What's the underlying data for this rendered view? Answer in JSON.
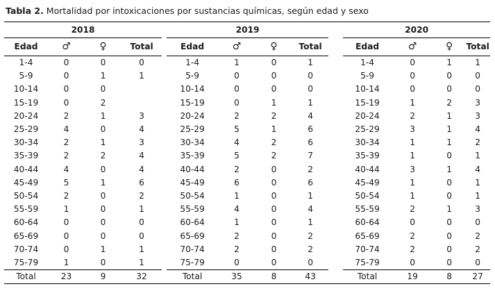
{
  "caption": {
    "label": "Tabla 2.",
    "text": " Mortalidad por intoxicaciones por sustancias químicas, según edad y sexo"
  },
  "years": [
    "2018",
    "2019",
    "2020"
  ],
  "headers": {
    "age": "Edad",
    "male": "♂",
    "female": "♀",
    "total": "Total"
  },
  "rows": [
    {
      "age": "1-4",
      "y2018": [
        "0",
        "0",
        "0"
      ],
      "y2019": [
        "1",
        "0",
        "1"
      ],
      "y2020": [
        "0",
        "1",
        "1"
      ]
    },
    {
      "age": "5-9",
      "y2018": [
        "0",
        "1",
        "1"
      ],
      "y2019": [
        "0",
        "0",
        "0"
      ],
      "y2020": [
        "0",
        "0",
        "0"
      ]
    },
    {
      "age": "10-14",
      "y2018": [
        "0",
        "0",
        ""
      ],
      "y2019": [
        "0",
        "0",
        "0"
      ],
      "y2020": [
        "0",
        "0",
        "0"
      ]
    },
    {
      "age": "15-19",
      "y2018": [
        "0",
        "2",
        ""
      ],
      "y2019": [
        "0",
        "1",
        "1"
      ],
      "y2020": [
        "1",
        "2",
        "3"
      ]
    },
    {
      "age": "20-24",
      "y2018": [
        "2",
        "1",
        "3"
      ],
      "y2019": [
        "2",
        "2",
        "4"
      ],
      "y2020": [
        "2",
        "1",
        "3"
      ]
    },
    {
      "age": "25-29",
      "y2018": [
        "4",
        "0",
        "4"
      ],
      "y2019": [
        "5",
        "1",
        "6"
      ],
      "y2020": [
        "3",
        "1",
        "4"
      ]
    },
    {
      "age": "30-34",
      "y2018": [
        "2",
        "1",
        "3"
      ],
      "y2019": [
        "4",
        "2",
        "6"
      ],
      "y2020": [
        "1",
        "1",
        "2"
      ]
    },
    {
      "age": "35-39",
      "y2018": [
        "2",
        "2",
        "4"
      ],
      "y2019": [
        "5",
        "2",
        "7"
      ],
      "y2020": [
        "1",
        "0",
        "1"
      ]
    },
    {
      "age": "40-44",
      "y2018": [
        "4",
        "0",
        "4"
      ],
      "y2019": [
        "2",
        "0",
        "2"
      ],
      "y2020": [
        "3",
        "1",
        "4"
      ]
    },
    {
      "age": "45-49",
      "y2018": [
        "5",
        "1",
        "6"
      ],
      "y2019": [
        "6",
        "0",
        "6"
      ],
      "y2020": [
        "1",
        "0",
        "1"
      ]
    },
    {
      "age": "50-54",
      "y2018": [
        "2",
        "0",
        "2"
      ],
      "y2019": [
        "1",
        "0",
        "1"
      ],
      "y2020": [
        "1",
        "0",
        "1"
      ]
    },
    {
      "age": "55-59",
      "y2018": [
        "1",
        "0",
        "1"
      ],
      "y2019": [
        "4",
        "0",
        "4"
      ],
      "y2020": [
        "2",
        "1",
        "3"
      ]
    },
    {
      "age": "60-64",
      "y2018": [
        "0",
        "0",
        "0"
      ],
      "y2019": [
        "1",
        "0",
        "1"
      ],
      "y2020": [
        "0",
        "0",
        "0"
      ]
    },
    {
      "age": "65-69",
      "y2018": [
        "0",
        "0",
        "0"
      ],
      "y2019": [
        "2",
        "0",
        "2"
      ],
      "y2020": [
        "2",
        "0",
        "2"
      ]
    },
    {
      "age": "70-74",
      "y2018": [
        "0",
        "1",
        "1"
      ],
      "y2019": [
        "2",
        "0",
        "2"
      ],
      "y2020": [
        "2",
        "0",
        "2"
      ]
    },
    {
      "age": "75-79",
      "y2018": [
        "1",
        "0",
        "1"
      ],
      "y2019": [
        "0",
        "0",
        "0"
      ],
      "y2020": [
        "0",
        "0",
        "0"
      ]
    }
  ],
  "totals": {
    "label": "Total",
    "y2018": [
      "23",
      "9",
      "32"
    ],
    "y2019": [
      "35",
      "8",
      "43"
    ],
    "y2020": [
      "19",
      "8",
      "27"
    ]
  }
}
